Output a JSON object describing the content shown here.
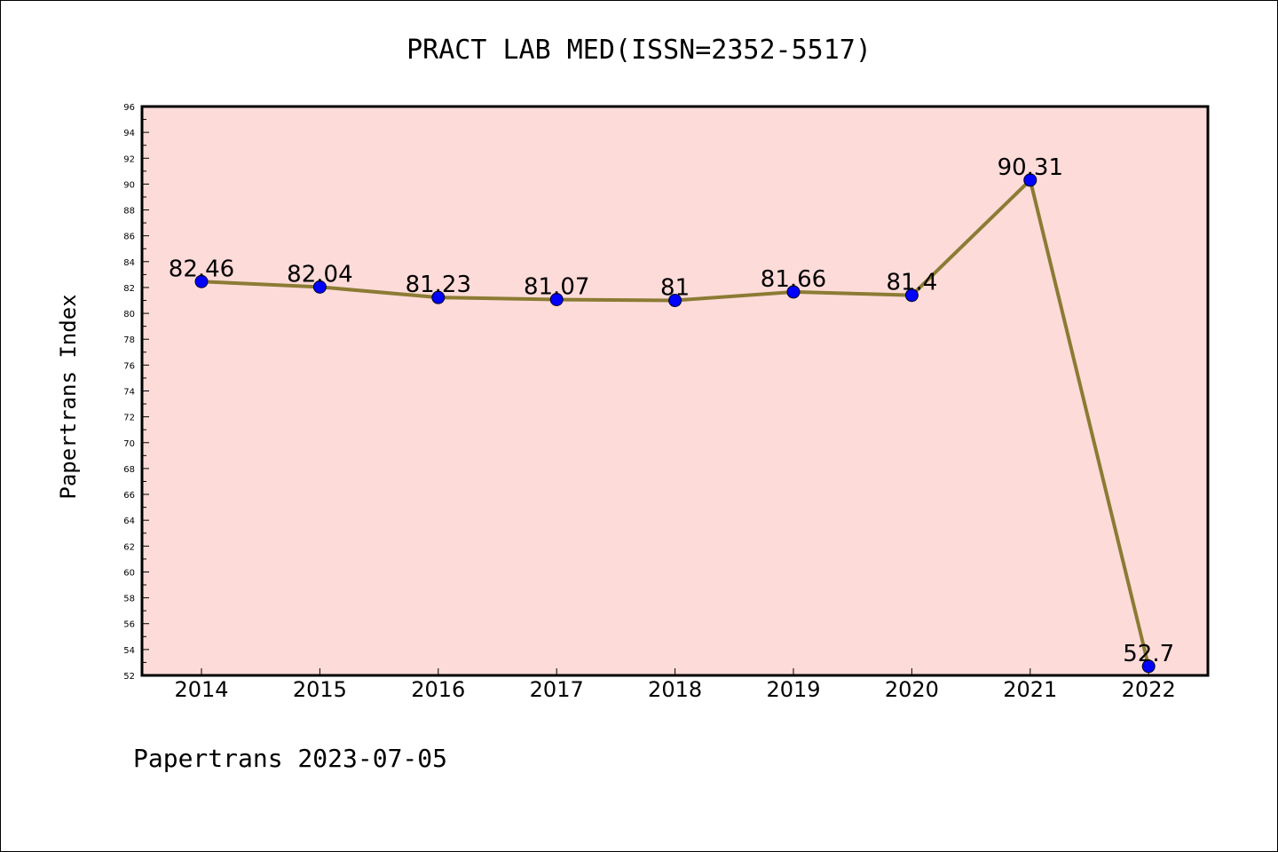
{
  "chart_data": {
    "type": "line",
    "title": "PRACT LAB MED(ISSN=2352-5517)",
    "xlabel": "",
    "ylabel": "Papertrans Index",
    "categories": [
      "2014",
      "2015",
      "2016",
      "2017",
      "2018",
      "2019",
      "2020",
      "2021",
      "2022"
    ],
    "series": [
      {
        "values": [
          82.46,
          82.04,
          81.23,
          81.07,
          81,
          81.66,
          81.4,
          90.31,
          52.7
        ],
        "data_labels": [
          "82.46",
          "82.04",
          "81.23",
          "81.07",
          "81",
          "81.66",
          "81.4",
          "90.31",
          "52.7"
        ],
        "line_color": "#8b7b34",
        "marker_color": "#0000ff"
      }
    ],
    "ylim": [
      52,
      96
    ],
    "yticks": [
      52,
      54,
      56,
      58,
      60,
      62,
      64,
      66,
      68,
      70,
      72,
      74,
      76,
      78,
      80,
      82,
      84,
      86,
      88,
      90,
      92,
      94,
      96
    ],
    "plot_background": "#fddbd8",
    "grid": false,
    "legend": "none"
  },
  "footer": {
    "text": "Papertrans 2023-07-05"
  }
}
